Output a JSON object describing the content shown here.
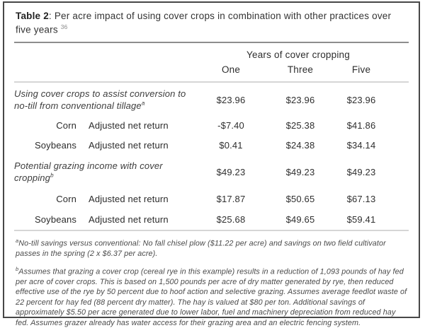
{
  "title": {
    "label": "Table 2",
    "text": ": Per acre impact of using cover crops in combination with other practices over five years",
    "footnote_ref": "36"
  },
  "table": {
    "group_header": "Years of cover cropping",
    "columns": [
      "One",
      "Three",
      "Five"
    ],
    "rows": [
      {
        "type": "section",
        "label": "Using cover crops to assist conversion to no-till from conventional tillage",
        "sup": "a",
        "values": [
          "$23.96",
          "$23.96",
          "$23.96"
        ]
      },
      {
        "type": "data",
        "crop": "Corn",
        "measure": "Adjusted net return",
        "values": [
          "-$7.40",
          "$25.38",
          "$41.86"
        ]
      },
      {
        "type": "data",
        "crop": "Soybeans",
        "measure": "Adjusted net return",
        "values": [
          "$0.41",
          "$24.38",
          "$34.14"
        ]
      },
      {
        "type": "section",
        "label": "Potential grazing income with cover cropping",
        "sup": "b",
        "values": [
          "$49.23",
          "$49.23",
          "$49.23"
        ]
      },
      {
        "type": "data",
        "crop": "Corn",
        "measure": "Adjusted net return",
        "values": [
          "$17.87",
          "$50.65",
          "$67.13"
        ]
      },
      {
        "type": "data",
        "crop": "Soybeans",
        "measure": "Adjusted net return",
        "values": [
          "$25.68",
          "$49.65",
          "$59.41"
        ]
      }
    ]
  },
  "footnotes": [
    {
      "marker": "a",
      "text": "No-till savings versus conventional: No fall chisel plow ($11.22 per acre) and savings on two field cultivator passes in the spring (2 x $6.37 per acre)."
    },
    {
      "marker": "b",
      "text": "Assumes that grazing a cover crop (cereal rye in this example) results in a reduction of 1,093 pounds of hay fed per acre of cover crops. This is based on 1,500 pounds per acre of dry matter generated by rye, then reduced effective use of the rye by 50 percent due to hoof action and selective grazing. Assumes average feedlot waste of 22 percent for hay fed (88 percent dry matter). The hay is valued at $80 per ton. Additional savings of approximately $5.50 per acre generated due to lower labor, fuel and machinery depreciation from reduced hay fed. Assumes grazer already has water access for their grazing area and an electric fencing system."
    }
  ],
  "colors": {
    "border": "#474747",
    "text": "#2e2e2e",
    "footnote_text": "#4a4a4a",
    "rule_dark": "#8e8e8e",
    "rule_light": "#d6d6d6"
  }
}
